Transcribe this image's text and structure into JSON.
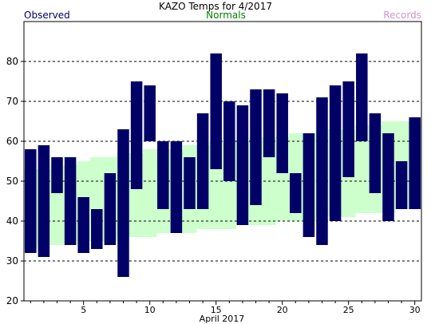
{
  "chart_data": {
    "type": "bar",
    "title": "KAZO Temps for 4/2017",
    "legend": {
      "observed": "Observed",
      "normals": "Normals",
      "records": "Records"
    },
    "xlabel": "April 2017",
    "ylabel": "",
    "ylim": [
      20,
      90
    ],
    "yticks": [
      20,
      30,
      40,
      50,
      60,
      70,
      80
    ],
    "xticks": [
      5,
      10,
      15,
      20,
      25,
      30
    ],
    "grid": true,
    "colors": {
      "observed": "#000066",
      "normals": "#ccffcc",
      "normals_text": "#008000",
      "records_text": "#cc99cc",
      "axis": "#000000",
      "grid": "#000000"
    },
    "days": [
      1,
      2,
      3,
      4,
      5,
      6,
      7,
      8,
      9,
      10,
      11,
      12,
      13,
      14,
      15,
      16,
      17,
      18,
      19,
      20,
      21,
      22,
      23,
      24,
      25,
      26,
      27,
      28,
      29,
      30
    ],
    "observed_high": [
      58,
      59,
      56,
      56,
      46,
      43,
      52,
      63,
      75,
      74,
      60,
      60,
      56,
      67,
      82,
      70,
      69,
      73,
      73,
      72,
      52,
      62,
      71,
      74,
      75,
      82,
      67,
      62,
      55,
      66
    ],
    "observed_low": [
      32,
      31,
      47,
      34,
      32,
      33,
      34,
      26,
      48,
      60,
      43,
      37,
      43,
      43,
      53,
      50,
      39,
      44,
      56,
      52,
      42,
      36,
      34,
      40,
      51,
      60,
      47,
      40,
      43,
      43
    ],
    "normal_high": [
      53,
      53,
      54,
      54,
      55,
      56,
      56,
      57,
      57,
      58,
      58,
      58,
      59,
      59,
      60,
      60,
      60,
      61,
      61,
      61,
      62,
      62,
      63,
      63,
      63,
      64,
      64,
      65,
      65,
      65
    ],
    "normal_low": [
      33,
      34,
      34,
      34,
      35,
      35,
      35,
      36,
      36,
      36,
      37,
      37,
      37,
      38,
      38,
      38,
      39,
      39,
      39,
      40,
      40,
      40,
      41,
      41,
      41,
      42,
      42,
      42,
      43,
      43
    ]
  }
}
